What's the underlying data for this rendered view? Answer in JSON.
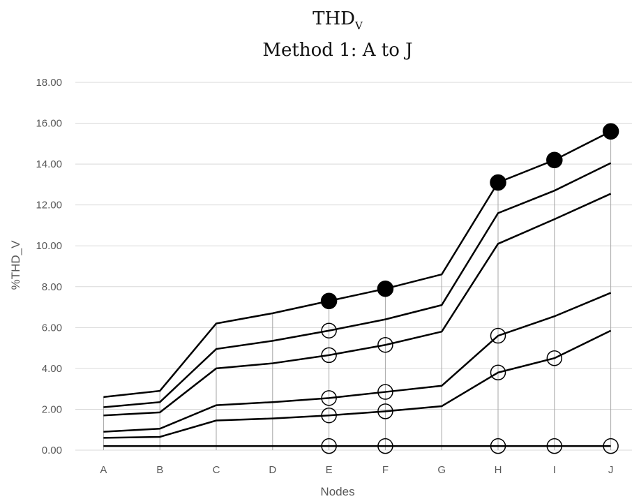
{
  "chart_data": {
    "type": "line",
    "title": {
      "main": "THD",
      "subscript": "V",
      "subtitle": "Method 1: A to J"
    },
    "xlabel": "Nodes",
    "ylabel": "%THD_V",
    "categories": [
      "A",
      "B",
      "C",
      "D",
      "E",
      "F",
      "G",
      "H",
      "I",
      "J"
    ],
    "ylim": [
      0,
      18
    ],
    "yticks": [
      "0.00",
      "2.00",
      "4.00",
      "6.00",
      "8.00",
      "10.00",
      "12.00",
      "14.00",
      "16.00",
      "18.00"
    ],
    "grid": "horizontal",
    "drop_lines": true,
    "series": [
      {
        "values": [
          2.6,
          2.9,
          6.2,
          6.7,
          7.3,
          7.9,
          8.6,
          13.1,
          14.2,
          15.6
        ],
        "markers": "filled",
        "marker_at": [
          "E",
          "F",
          "H",
          "I",
          "J"
        ]
      },
      {
        "values": [
          2.1,
          2.35,
          4.95,
          5.35,
          5.85,
          6.4,
          7.1,
          11.6,
          12.7,
          14.05
        ],
        "markers": "hollow",
        "marker_at": [
          "E"
        ]
      },
      {
        "values": [
          1.7,
          1.85,
          4.0,
          4.25,
          4.65,
          5.15,
          5.8,
          10.1,
          11.3,
          12.55
        ],
        "markers": "hollow",
        "marker_at": [
          "E",
          "F"
        ]
      },
      {
        "values": [
          0.9,
          1.05,
          2.2,
          2.35,
          2.55,
          2.85,
          3.15,
          5.6,
          6.55,
          7.7
        ],
        "markers": "hollow",
        "marker_at": [
          "E",
          "F",
          "H"
        ]
      },
      {
        "values": [
          0.6,
          0.65,
          1.45,
          1.55,
          1.7,
          1.9,
          2.15,
          3.8,
          4.5,
          5.85
        ],
        "markers": "hollow",
        "marker_at": [
          "E",
          "F",
          "H",
          "I"
        ]
      },
      {
        "values": [
          0.2,
          0.2,
          0.2,
          0.2,
          0.2,
          0.2,
          0.2,
          0.2,
          0.2,
          0.2
        ],
        "markers": "hollow",
        "marker_at": [
          "E",
          "F",
          "H",
          "I",
          "J"
        ]
      }
    ],
    "colors": {
      "line": "#000000",
      "grid": "#d9d9d9",
      "drop_line": "#a6a6a6",
      "text": "#595959"
    }
  }
}
